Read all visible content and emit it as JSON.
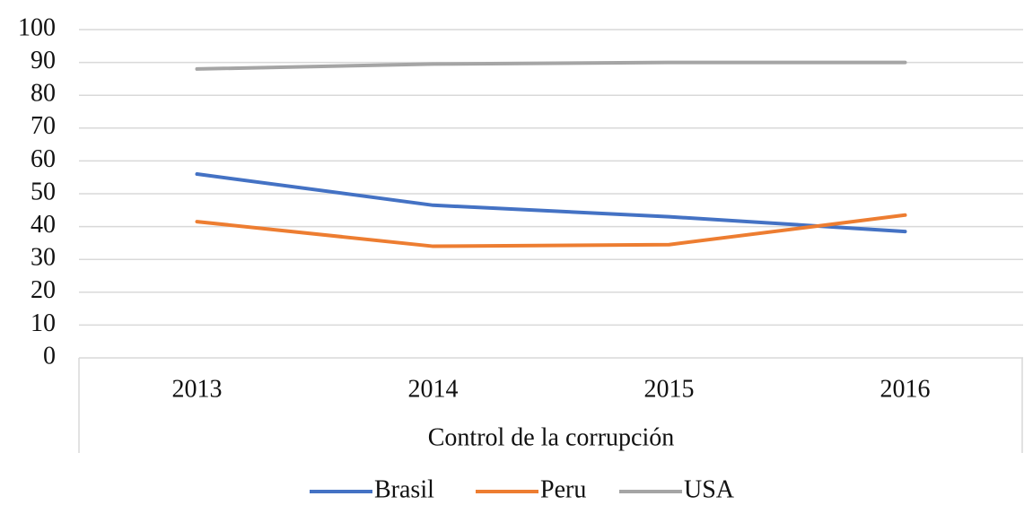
{
  "chart_data": {
    "type": "line",
    "x_label": "Control de la corrupción",
    "categories": [
      "2013",
      "2014",
      "2015",
      "2016"
    ],
    "series": [
      {
        "name": "Brasil",
        "color": "#4472c4",
        "values": [
          56,
          46.5,
          43,
          38.5
        ]
      },
      {
        "name": "Peru",
        "color": "#ed7d31",
        "values": [
          41.5,
          34,
          34.5,
          43.5
        ]
      },
      {
        "name": "USA",
        "color": "#a5a5a5",
        "values": [
          88,
          89.5,
          90,
          90
        ]
      }
    ],
    "ylim": [
      0,
      100
    ],
    "yticks": [
      0,
      10,
      20,
      30,
      40,
      50,
      60,
      70,
      80,
      90,
      100
    ],
    "grid": true,
    "legend": "bottom"
  }
}
